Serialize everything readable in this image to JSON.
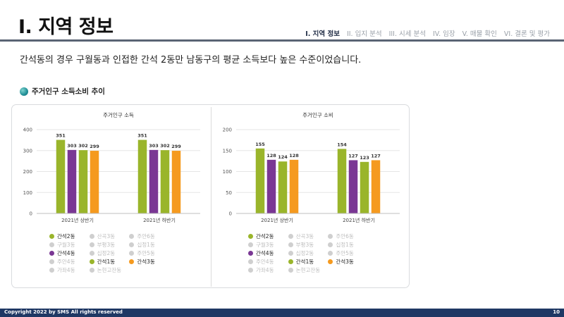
{
  "header": {
    "title": "I. 지역 정보",
    "nav": [
      {
        "label": "I. 지역 정보",
        "active": true
      },
      {
        "label": "II. 입지 분석",
        "active": false
      },
      {
        "label": "III. 시세 분석",
        "active": false
      },
      {
        "label": "IV. 임장",
        "active": false
      },
      {
        "label": "V. 매물 확인",
        "active": false
      },
      {
        "label": "VI. 결론 및 평가",
        "active": false
      }
    ]
  },
  "summary": "간석동의 경우 구월동과 인접한 간석 2동만 남동구의 평균 소득보다 높은 수준이었습니다.",
  "section": {
    "label": "주거인구 소득소비 추이",
    "icon": "bullet-icon"
  },
  "colors": {
    "green": "#9ab52b",
    "purple": "#7a3794",
    "orange": "#f59a1f",
    "muted": "#cfcfcf",
    "footer": "#1f3864"
  },
  "chart_data": [
    {
      "type": "bar",
      "title": "주거인구 소득",
      "categories": [
        "2021년 상반기",
        "2021년 하반기"
      ],
      "series": [
        {
          "name": "간석2동",
          "color": "#9ab52b",
          "values": [
            351,
            351
          ]
        },
        {
          "name": "간석4동",
          "color": "#7a3794",
          "values": [
            303,
            303
          ]
        },
        {
          "name": "간석1동",
          "color": "#9ab52b",
          "values": [
            302,
            302
          ]
        },
        {
          "name": "간석3동",
          "color": "#f59a1f",
          "values": [
            299,
            299
          ]
        }
      ],
      "yticks": [
        "0",
        "100",
        "200",
        "300",
        "400"
      ],
      "ylim": [
        0,
        400
      ],
      "grid": true,
      "legend_position": "bottom-left",
      "legend": [
        {
          "label": "간석2동",
          "color": "#9ab52b",
          "muted": false
        },
        {
          "label": "산곡3동",
          "color": "#cfcfcf",
          "muted": true
        },
        {
          "label": "주안6동",
          "color": "#cfcfcf",
          "muted": true
        },
        {
          "label": "구월3동",
          "color": "#cfcfcf",
          "muted": true
        },
        {
          "label": "부평3동",
          "color": "#cfcfcf",
          "muted": true
        },
        {
          "label": "십정1동",
          "color": "#cfcfcf",
          "muted": true
        },
        {
          "label": "간석4동",
          "color": "#7a3794",
          "muted": false
        },
        {
          "label": "십정2동",
          "color": "#cfcfcf",
          "muted": true
        },
        {
          "label": "주안5동",
          "color": "#cfcfcf",
          "muted": true
        },
        {
          "label": "주안4동",
          "color": "#cfcfcf",
          "muted": true
        },
        {
          "label": "간석1동",
          "color": "#9ab52b",
          "muted": false
        },
        {
          "label": "간석3동",
          "color": "#f59a1f",
          "muted": false
        },
        {
          "label": "가좌4동",
          "color": "#cfcfcf",
          "muted": true
        },
        {
          "label": "논현고잔동",
          "color": "#cfcfcf",
          "muted": true
        }
      ]
    },
    {
      "type": "bar",
      "title": "주거인구 소비",
      "categories": [
        "2021년 상반기",
        "2021년 하반기"
      ],
      "series": [
        {
          "name": "간석2동",
          "color": "#9ab52b",
          "values": [
            155,
            154
          ]
        },
        {
          "name": "간석4동",
          "color": "#7a3794",
          "values": [
            128,
            127
          ]
        },
        {
          "name": "간석1동",
          "color": "#9ab52b",
          "values": [
            124,
            123
          ]
        },
        {
          "name": "간석3동",
          "color": "#f59a1f",
          "values": [
            128,
            127
          ]
        }
      ],
      "yticks": [
        "0",
        "50",
        "100",
        "150",
        "200"
      ],
      "ylim": [
        0,
        200
      ],
      "grid": true,
      "legend_position": "bottom-left",
      "legend": [
        {
          "label": "간석2동",
          "color": "#9ab52b",
          "muted": false
        },
        {
          "label": "산곡3동",
          "color": "#cfcfcf",
          "muted": true
        },
        {
          "label": "주안6동",
          "color": "#cfcfcf",
          "muted": true
        },
        {
          "label": "구월3동",
          "color": "#cfcfcf",
          "muted": true
        },
        {
          "label": "부평3동",
          "color": "#cfcfcf",
          "muted": true
        },
        {
          "label": "십정1동",
          "color": "#cfcfcf",
          "muted": true
        },
        {
          "label": "간석4동",
          "color": "#7a3794",
          "muted": false
        },
        {
          "label": "십정2동",
          "color": "#cfcfcf",
          "muted": true
        },
        {
          "label": "주안5동",
          "color": "#cfcfcf",
          "muted": true
        },
        {
          "label": "주안4동",
          "color": "#cfcfcf",
          "muted": true
        },
        {
          "label": "간석1동",
          "color": "#9ab52b",
          "muted": false
        },
        {
          "label": "간석3동",
          "color": "#f59a1f",
          "muted": false
        },
        {
          "label": "가좌4동",
          "color": "#cfcfcf",
          "muted": true
        },
        {
          "label": "논현고잔동",
          "color": "#cfcfcf",
          "muted": true
        }
      ]
    }
  ],
  "footer": {
    "copyright": "Copyright 2022 by SMS All rights reserved",
    "page_number": "10"
  }
}
